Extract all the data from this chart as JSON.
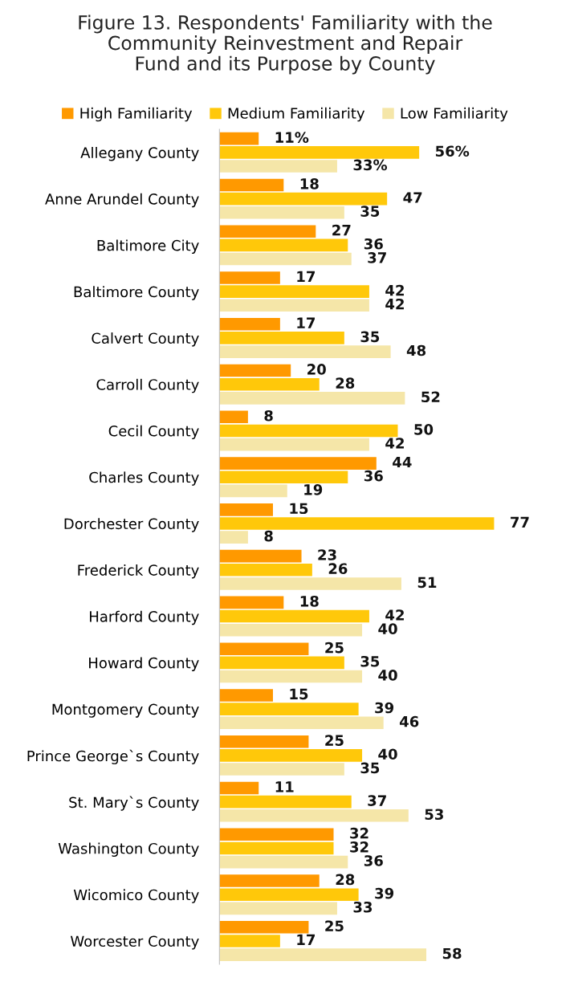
{
  "chart_data": {
    "type": "bar",
    "orientation": "horizontal",
    "title": "Figure 13. Respondents' Familiarity with the\nCommunity Reinvestment and Repair\nFund and its Purpose by County",
    "categories": [
      "Allegany County",
      "Anne Arundel County",
      "Baltimore City",
      "Baltimore County",
      "Calvert County",
      "Carroll County",
      "Cecil County",
      "Charles County",
      "Dorchester County",
      "Frederick County",
      "Harford County",
      "Howard County",
      "Montgomery County",
      "Prince George`s County",
      "St. Mary`s County",
      "Washington County",
      "Wicomico County",
      "Worcester County"
    ],
    "series": [
      {
        "name": "High Familiarity",
        "color": "#ff9900",
        "values": [
          11,
          18,
          27,
          17,
          17,
          20,
          8,
          44,
          15,
          23,
          18,
          25,
          15,
          25,
          11,
          32,
          28,
          25
        ],
        "value_labels": [
          "11%",
          "18",
          "27",
          "17",
          "17",
          "20",
          "8",
          "44",
          "15",
          "23",
          "18",
          "25",
          "15",
          "25",
          "11",
          "32",
          "28",
          "25"
        ]
      },
      {
        "name": "Medium Familiarity",
        "color": "#ffc80a",
        "values": [
          56,
          47,
          36,
          42,
          35,
          28,
          50,
          36,
          77,
          26,
          42,
          35,
          39,
          40,
          37,
          32,
          39,
          17
        ],
        "value_labels": [
          "56%",
          "47",
          "36",
          "42",
          "35",
          "28",
          "50",
          "36",
          "77",
          "26",
          "42",
          "35",
          "39",
          "40",
          "37",
          "32",
          "39",
          "17"
        ]
      },
      {
        "name": "Low Familiarity",
        "color": "#f5e6a8",
        "values": [
          33,
          35,
          37,
          42,
          48,
          52,
          42,
          19,
          8,
          51,
          40,
          40,
          46,
          35,
          53,
          36,
          33,
          58
        ],
        "value_labels": [
          "33%",
          "35",
          "37",
          "42",
          "48",
          "52",
          "42",
          "19",
          "8",
          "51",
          "40",
          "40",
          "46",
          "35",
          "53",
          "36",
          "33",
          "58"
        ]
      }
    ],
    "legend": "top",
    "grid": false
  }
}
